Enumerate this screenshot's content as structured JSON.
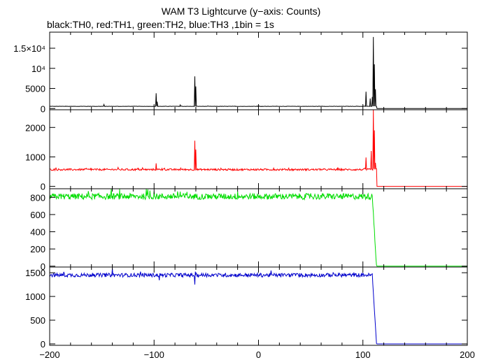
{
  "title": "WAM T3 Lightcurve (y−axis: Counts)",
  "subtitle": "black:TH0, red:TH1, green:TH2, blue:TH3 ,1bin = 1s",
  "chart_data": [
    {
      "type": "line",
      "series": [
        {
          "name": "TH0",
          "color": "#000000"
        }
      ],
      "ylim": [
        -300,
        19000
      ],
      "yticks": [
        0,
        5000,
        10000,
        15000
      ],
      "yticklabels": [
        "0",
        "5000",
        "10⁴",
        "1.5×10⁴"
      ],
      "xlim": [
        -200,
        200
      ],
      "baseline": 550,
      "noise": 35,
      "tail_level": 0,
      "features": [
        {
          "x": -148,
          "y": 1000
        },
        {
          "x": -98,
          "y": 3800
        },
        {
          "x": -97,
          "y": 1700
        },
        {
          "x": -75,
          "y": 900
        },
        {
          "x": -61,
          "y": 8000
        },
        {
          "x": -60,
          "y": 5500
        },
        {
          "x": 0,
          "y": 850
        },
        {
          "x": 103,
          "y": 4200
        },
        {
          "x": 107,
          "y": 2500
        },
        {
          "x": 109,
          "y": 2900
        },
        {
          "x": 110,
          "y": 17800
        },
        {
          "x": 111,
          "y": 11000
        },
        {
          "x": 112,
          "y": 4800
        }
      ]
    },
    {
      "type": "line",
      "series": [
        {
          "name": "TH1",
          "color": "#ff0000"
        }
      ],
      "ylim": [
        -80,
        2600
      ],
      "yticks": [
        0,
        1000,
        2000
      ],
      "yticklabels": [
        "0",
        "1000",
        "2000"
      ],
      "xlim": [
        -200,
        200
      ],
      "baseline": 570,
      "noise": 30,
      "tail_level": 0,
      "features": [
        {
          "x": -98,
          "y": 780
        },
        {
          "x": -61,
          "y": 1550
        },
        {
          "x": -60,
          "y": 1250
        },
        {
          "x": 103,
          "y": 980
        },
        {
          "x": 108,
          "y": 1200
        },
        {
          "x": 110,
          "y": 2600
        },
        {
          "x": 111,
          "y": 1900
        },
        {
          "x": 112,
          "y": 800
        }
      ]
    },
    {
      "type": "line",
      "series": [
        {
          "name": "TH2",
          "color": "#00dd00"
        }
      ],
      "ylim": [
        -10,
        900
      ],
      "yticks": [
        0,
        200,
        400,
        600,
        800
      ],
      "yticklabels": [
        "0",
        "200",
        "400",
        "600",
        "800"
      ],
      "xlim": [
        -200,
        200
      ],
      "baseline": 810,
      "noise": 35,
      "tail_level": 0,
      "features": []
    },
    {
      "type": "line",
      "series": [
        {
          "name": "TH3",
          "color": "#0000cc"
        }
      ],
      "ylim": [
        -30,
        1620
      ],
      "yticks": [
        0,
        500,
        1000,
        1500
      ],
      "yticklabels": [
        "0",
        "500",
        "1000",
        "1500"
      ],
      "xlim": [
        -200,
        200
      ],
      "xticks": [
        -200,
        -100,
        0,
        100,
        200
      ],
      "xticklabels": [
        "−200",
        "−100",
        "0",
        "100",
        "200"
      ],
      "baseline": 1450,
      "noise": 40,
      "tail_level": 0,
      "features": [
        {
          "x": -140,
          "y": 1590
        },
        {
          "x": -61,
          "y": 1250
        },
        {
          "x": -95,
          "y": 1340
        }
      ]
    }
  ]
}
